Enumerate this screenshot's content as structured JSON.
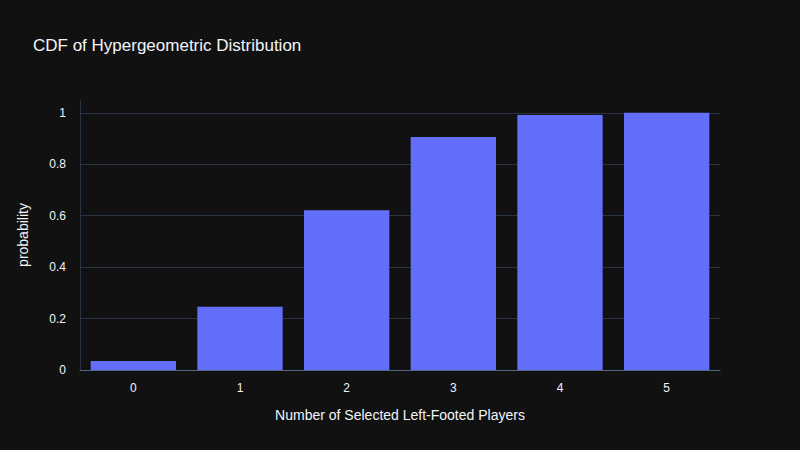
{
  "chart_data": {
    "type": "bar",
    "title": "CDF of Hypergeometric Distribution",
    "x_label": "Number of Selected Left-Footed Players",
    "y_label": "probability",
    "categories": [
      "0",
      "1",
      "2",
      "3",
      "4",
      "5"
    ],
    "values": [
      0.035,
      0.246,
      0.621,
      0.906,
      0.992,
      1.0
    ],
    "color": "#636efa",
    "ylim": [
      0,
      1.05
    ],
    "yticks": [
      0,
      0.2,
      0.4,
      0.6,
      0.8,
      1
    ],
    "grid": true
  }
}
